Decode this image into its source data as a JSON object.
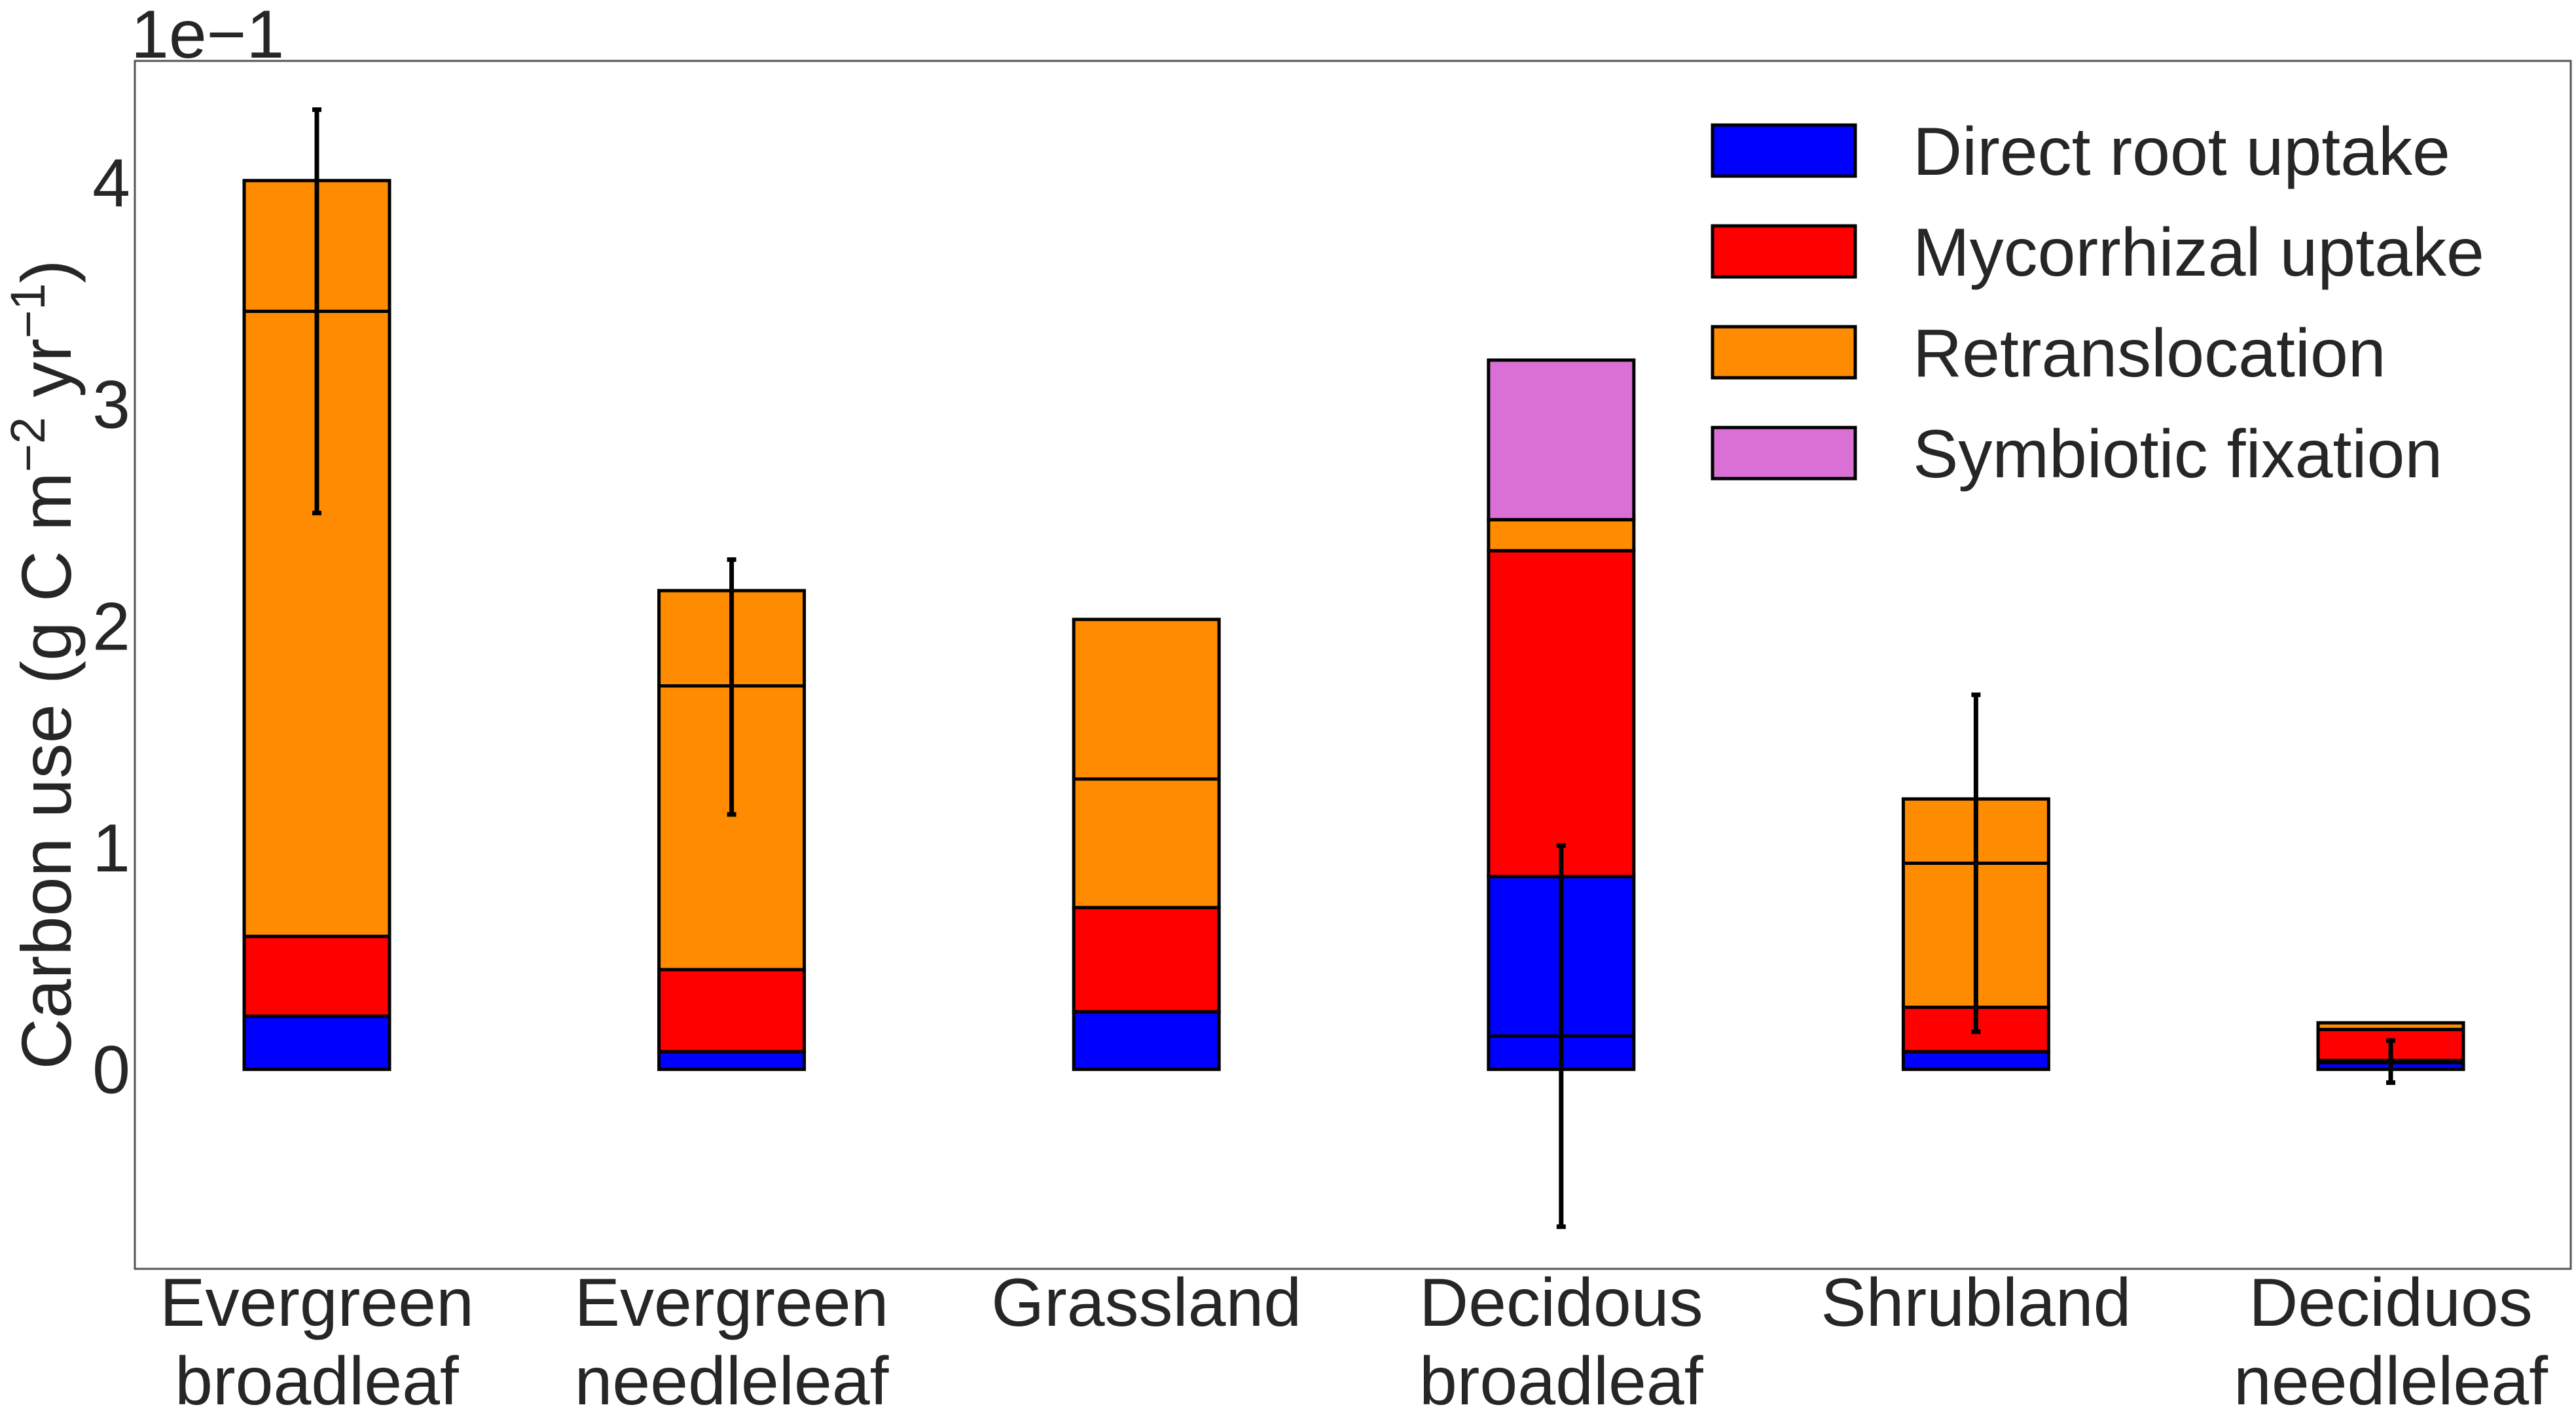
{
  "chart_data": {
    "type": "bar",
    "stacked": true,
    "ylabel": "Carbon use (g C m⁻² yr⁻¹)",
    "ylabel_parts": {
      "pre": "Carbon use (g C m",
      "exp1": "−2",
      "mid": " yr",
      "exp2": "−1",
      "post": ")"
    },
    "axis_multiplier": "1e−1",
    "ylim": [
      -0.09,
      0.455
    ],
    "yticks": [
      0,
      1,
      2,
      3,
      4
    ],
    "tick_scale": 0.1,
    "categories": [
      [
        "Evergreen",
        "broadleaf"
      ],
      [
        "Evergreen",
        "needleleaf"
      ],
      [
        "Grassland"
      ],
      [
        "Decidous",
        "broadleaf"
      ],
      [
        "Shrubland"
      ],
      [
        "Deciduos",
        "needleleaf"
      ]
    ],
    "stack_order": [
      "Direct root uptake",
      "Mycorrhizal uptake",
      "Retranslocation",
      "Symbiotic fixation"
    ],
    "series": [
      {
        "name": "Direct root uptake",
        "color": "#0000ff",
        "values": [
          0.024,
          0.008,
          0.026,
          0.087,
          0.008,
          0.004
        ]
      },
      {
        "name": "Mycorrhizal uptake",
        "color": "#ff0000",
        "values": [
          0.036,
          0.037,
          0.047,
          0.147,
          0.02,
          0.014
        ]
      },
      {
        "name": "Retranslocation",
        "color": "#ff8c00",
        "values": [
          0.341,
          0.171,
          0.13,
          0.014,
          0.094,
          0.003
        ]
      },
      {
        "name": "Symbiotic fixation",
        "color": "#da70d6",
        "values": [
          0,
          0,
          0,
          0.072,
          0,
          0
        ]
      }
    ],
    "inner_lines": [
      0.342,
      0.173,
      0.131,
      0.015,
      0.093,
      0.003
    ],
    "error_bars": [
      {
        "center": 0.342,
        "low": 0.251,
        "high": 0.433
      },
      {
        "center": 0.173,
        "low": 0.115,
        "high": 0.23
      },
      null,
      {
        "center": 0.015,
        "low": -0.071,
        "high": 0.101
      },
      {
        "center": 0.093,
        "low": 0.017,
        "high": 0.169
      },
      {
        "center": 0.003,
        "low": -0.006,
        "high": 0.013
      }
    ],
    "legend": {
      "placement": "top-right",
      "entries": [
        {
          "label": "Direct root uptake",
          "color": "#0000ff"
        },
        {
          "label": "Mycorrhizal uptake",
          "color": "#ff0000"
        },
        {
          "label": "Retranslocation",
          "color": "#ff8c00"
        },
        {
          "label": "Symbiotic fixation",
          "color": "#da70d6"
        }
      ]
    },
    "grid": false
  }
}
